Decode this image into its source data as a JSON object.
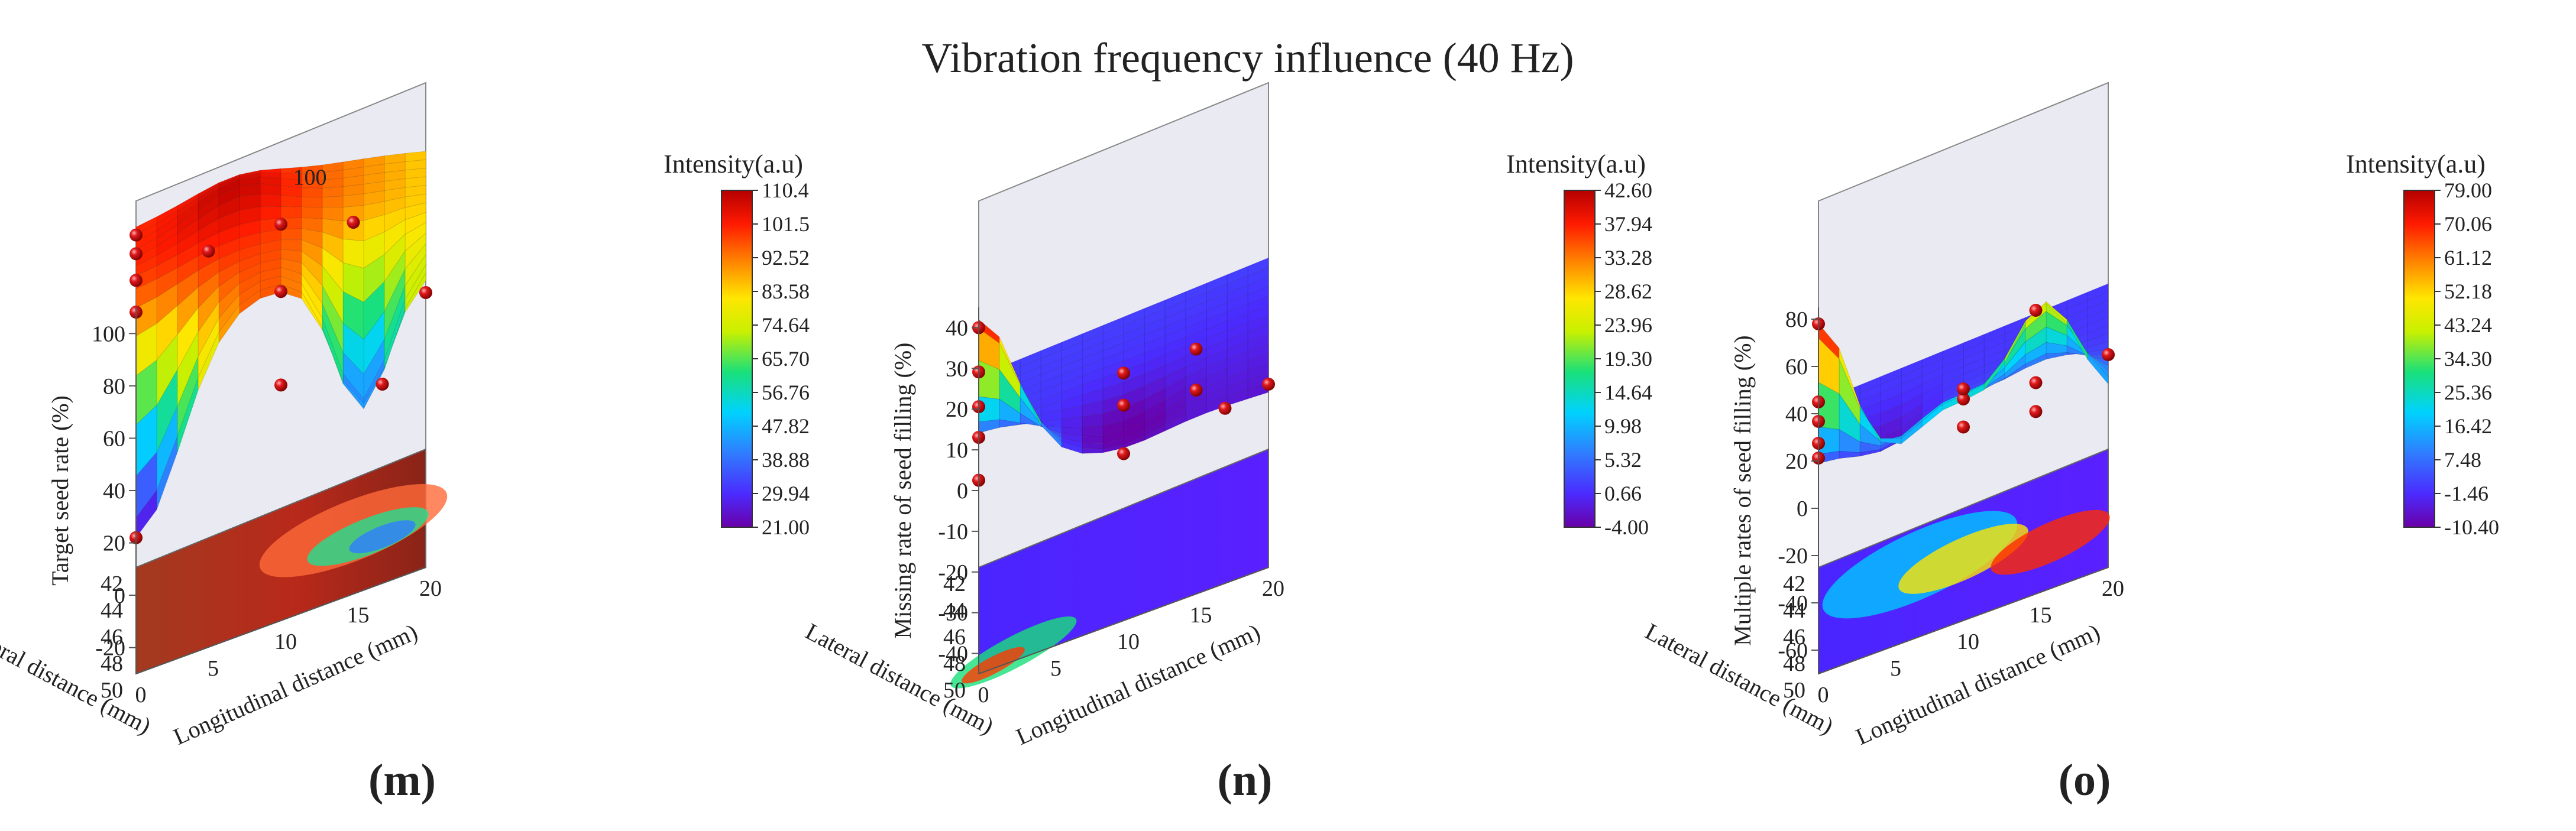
{
  "figure": {
    "title": "Vibration frequency influence (40 Hz)"
  },
  "chart_data": [
    {
      "type": "surface3d",
      "panel_label": "(m)",
      "panel_letter": "m",
      "zlabel": "Target seed rate (%)",
      "xlabel": "Lateral distance (mm)",
      "ylabel": "Longitudinal distance (mm)",
      "x_ticks": [
        "42",
        "44",
        "46",
        "48",
        "50"
      ],
      "y_ticks": [
        "0",
        "5",
        "10",
        "15",
        "20"
      ],
      "z_ticks": [
        "-20",
        "0",
        "20",
        "40",
        "60",
        "80",
        "100"
      ],
      "zlim": [
        -30,
        110
      ],
      "surface_annotation": "100",
      "colorbar": {
        "title": "Intensity(a.u)",
        "ticks": [
          "110.4",
          "101.5",
          "92.52",
          "83.58",
          "74.64",
          "65.70",
          "56.76",
          "47.82",
          "38.88",
          "29.94",
          "21.00"
        ],
        "min": 21.0,
        "max": 110.4
      },
      "data_points": [
        {
          "x": 42,
          "y": 0,
          "z": 97
        },
        {
          "x": 44,
          "y": 0,
          "z": 100
        },
        {
          "x": 46,
          "y": 0,
          "z": 100
        },
        {
          "x": 48,
          "y": 0,
          "z": 98
        },
        {
          "x": 50,
          "y": 0,
          "z": 22
        },
        {
          "x": 44,
          "y": 5,
          "z": 90
        },
        {
          "x": 46,
          "y": 10,
          "z": 100
        },
        {
          "x": 48,
          "y": 10,
          "z": 85
        },
        {
          "x": 50,
          "y": 10,
          "z": 60
        },
        {
          "x": 46,
          "y": 15,
          "z": 90
        },
        {
          "x": 48,
          "y": 17,
          "z": 35
        },
        {
          "x": 50,
          "y": 20,
          "z": 75
        }
      ]
    },
    {
      "type": "surface3d",
      "panel_label": "(n)",
      "panel_letter": "n",
      "zlabel": "Missing rate of seed filling (%)",
      "xlabel": "Lateral distance (mm)",
      "ylabel": "Longitudinal distance (mm)",
      "x_ticks": [
        "42",
        "44",
        "46",
        "48",
        "50"
      ],
      "y_ticks": [
        "0",
        "5",
        "10",
        "15",
        "20"
      ],
      "z_ticks": [
        "-40",
        "-30",
        "-20",
        "-10",
        "0",
        "10",
        "20",
        "30",
        "40"
      ],
      "zlim": [
        -45,
        45
      ],
      "colorbar": {
        "title": "Intensity(a.u)",
        "ticks": [
          "42.60",
          "37.94",
          "33.28",
          "28.62",
          "23.96",
          "19.30",
          "14.64",
          "9.98",
          "5.32",
          "0.66",
          "-4.00"
        ],
        "min": -4.0,
        "max": 42.6
      },
      "data_points": [
        {
          "x": 42,
          "y": 0,
          "z": 3
        },
        {
          "x": 44,
          "y": 0,
          "z": 1
        },
        {
          "x": 46,
          "y": 0,
          "z": 0
        },
        {
          "x": 48,
          "y": 0,
          "z": -4
        },
        {
          "x": 50,
          "y": 0,
          "z": 40
        },
        {
          "x": 46,
          "y": 10,
          "z": 2
        },
        {
          "x": 48,
          "y": 10,
          "z": 1
        },
        {
          "x": 50,
          "y": 10,
          "z": -4
        },
        {
          "x": 46,
          "y": 15,
          "z": 1
        },
        {
          "x": 48,
          "y": 15,
          "z": -2
        },
        {
          "x": 50,
          "y": 17,
          "z": -2
        },
        {
          "x": 50,
          "y": 20,
          "z": 0
        }
      ]
    },
    {
      "type": "surface3d",
      "panel_label": "(o)",
      "panel_letter": "o",
      "zlabel": "Multiple rates of seed filling (%)",
      "xlabel": "Lateral distance (mm)",
      "ylabel": "Longitudinal distance (mm)",
      "x_ticks": [
        "42",
        "44",
        "46",
        "48",
        "50"
      ],
      "y_ticks": [
        "0",
        "5",
        "10",
        "15",
        "20"
      ],
      "z_ticks": [
        "-60",
        "-40",
        "-20",
        "0",
        "20",
        "40",
        "60",
        "80"
      ],
      "zlim": [
        -70,
        85
      ],
      "colorbar": {
        "title": "Intensity(a.u)",
        "ticks": [
          "79.00",
          "70.06",
          "61.12",
          "52.18",
          "43.24",
          "34.30",
          "25.36",
          "16.42",
          "7.48",
          "-1.46",
          "-10.40"
        ],
        "min": -10.4,
        "max": 79.0
      },
      "data_points": [
        {
          "x": 42,
          "y": 0,
          "z": 0
        },
        {
          "x": 44,
          "y": 0,
          "z": 3
        },
        {
          "x": 46,
          "y": 0,
          "z": 5
        },
        {
          "x": 48,
          "y": 0,
          "z": 10
        },
        {
          "x": 50,
          "y": 0,
          "z": 78
        },
        {
          "x": 46,
          "y": 10,
          "z": 0
        },
        {
          "x": 48,
          "y": 10,
          "z": 0
        },
        {
          "x": 50,
          "y": 10,
          "z": 28
        },
        {
          "x": 46,
          "y": 15,
          "z": -5
        },
        {
          "x": 48,
          "y": 15,
          "z": -5
        },
        {
          "x": 50,
          "y": 15,
          "z": 50
        },
        {
          "x": 50,
          "y": 20,
          "z": 20
        }
      ]
    }
  ]
}
